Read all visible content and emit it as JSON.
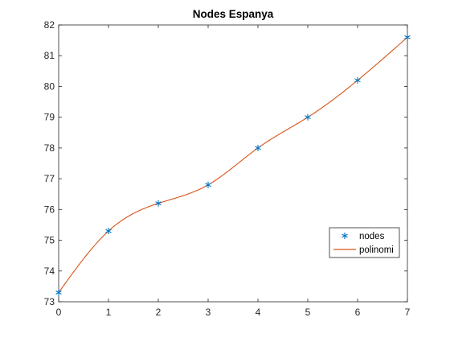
{
  "chart_data": {
    "type": "line",
    "title": "Nodes Espanya",
    "xlabel": "",
    "ylabel": "",
    "xlim": [
      0,
      7
    ],
    "ylim": [
      73,
      82
    ],
    "xticks": [
      0,
      1,
      2,
      3,
      4,
      5,
      6,
      7
    ],
    "yticks": [
      73,
      74,
      75,
      76,
      77,
      78,
      79,
      80,
      81,
      82
    ],
    "grid": false,
    "legend_position": "lower-right",
    "series": [
      {
        "name": "nodes",
        "kind": "markers",
        "marker": "asterisk",
        "color": "#0072BD",
        "x": [
          0,
          1,
          2,
          3,
          4,
          5,
          6,
          7
        ],
        "y": [
          73.3,
          75.3,
          76.2,
          76.8,
          78.0,
          79.0,
          80.2,
          81.6
        ]
      },
      {
        "name": "polinomi",
        "kind": "line",
        "color": "#D95319",
        "x": [
          0,
          1,
          2,
          3,
          4,
          5,
          6,
          7
        ],
        "y": [
          73.3,
          75.3,
          76.2,
          76.8,
          78.0,
          79.0,
          80.2,
          81.6
        ]
      }
    ]
  }
}
